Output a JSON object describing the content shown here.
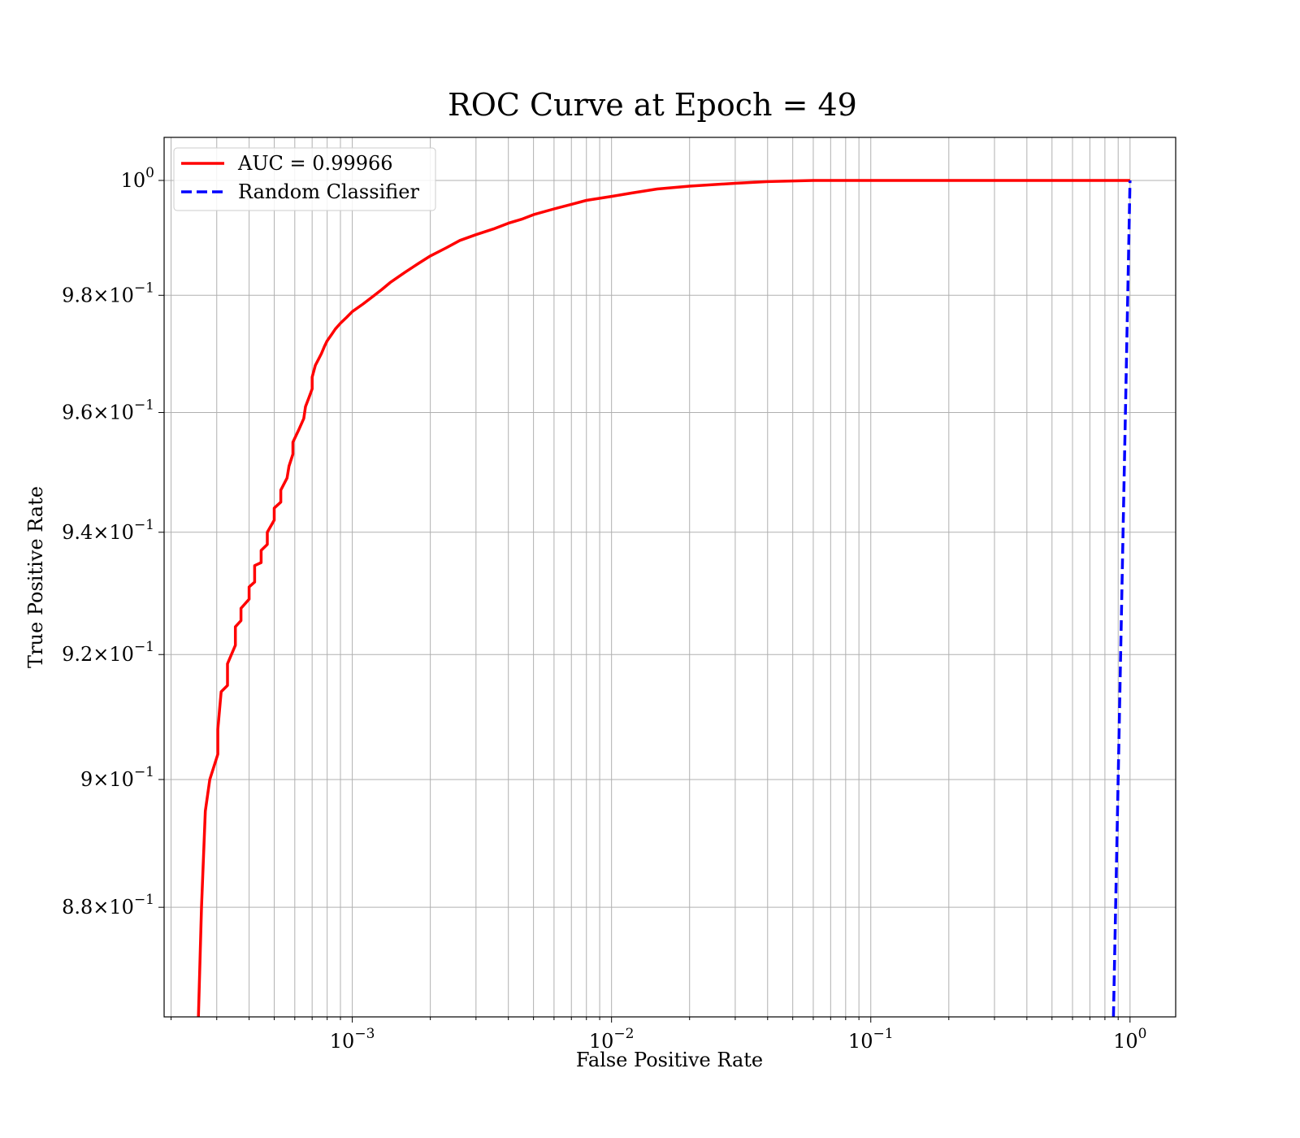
{
  "chart_data": {
    "type": "line",
    "title": "ROC Curve at Epoch = 49",
    "xlabel": "False Positive Rate",
    "ylabel": "True Positive Rate",
    "xscale": "log",
    "yscale": "log",
    "xlim": [
      0.000188,
      1.5
    ],
    "ylim": [
      0.8632,
      1.0076
    ],
    "x_ticks": [
      {
        "value": 0.001,
        "base": "10",
        "exp": "−3"
      },
      {
        "value": 0.01,
        "base": "10",
        "exp": "−2"
      },
      {
        "value": 0.1,
        "base": "10",
        "exp": "−1"
      },
      {
        "value": 1,
        "base": "10",
        "exp": "0"
      }
    ],
    "y_ticks": [
      {
        "value": 0.88,
        "mant": "8.8",
        "exp": "−1"
      },
      {
        "value": 0.9,
        "mant": "9",
        "exp": "−1"
      },
      {
        "value": 0.92,
        "mant": "9.2",
        "exp": "−1"
      },
      {
        "value": 0.94,
        "mant": "9.4",
        "exp": "−1"
      },
      {
        "value": 0.96,
        "mant": "9.6",
        "exp": "−1"
      },
      {
        "value": 0.98,
        "mant": "9.8",
        "exp": "−1"
      },
      {
        "value": 1.0,
        "mant": "10",
        "exp": "0"
      }
    ],
    "grid": true,
    "legend_position": "upper left",
    "series": [
      {
        "name": "AUC = 0.99966",
        "color": "#ff0000",
        "style": "solid",
        "x": [
          0.000255,
          0.000257,
          0.000262,
          0.000271,
          0.000282,
          0.000303,
          0.000303,
          0.000312,
          0.00033,
          0.00033,
          0.000354,
          0.000354,
          0.000372,
          0.000372,
          0.0004,
          0.0004,
          0.00042,
          0.00042,
          0.000445,
          0.000445,
          0.00047,
          0.00047,
          0.0005,
          0.0005,
          0.00053,
          0.00053,
          0.00056,
          0.00057,
          0.00059,
          0.00059,
          0.00062,
          0.00065,
          0.00066,
          0.00068,
          0.0007,
          0.0007,
          0.00072,
          0.00074,
          0.00076,
          0.00078,
          0.0008,
          0.00083,
          0.00086,
          0.0009,
          0.00095,
          0.001,
          0.0011,
          0.0012,
          0.0013,
          0.0014,
          0.0016,
          0.0018,
          0.002,
          0.0023,
          0.0026,
          0.003,
          0.0035,
          0.004,
          0.0045,
          0.005,
          0.006,
          0.007,
          0.008,
          0.01,
          0.012,
          0.015,
          0.02,
          0.03,
          0.04,
          0.06,
          0.08,
          0.1,
          0.2,
          0.5,
          1.0
        ],
        "y": [
          0.8632,
          0.868,
          0.88,
          0.895,
          0.9,
          0.904,
          0.908,
          0.914,
          0.915,
          0.9185,
          0.9215,
          0.9245,
          0.9255,
          0.9275,
          0.929,
          0.931,
          0.9318,
          0.9345,
          0.935,
          0.937,
          0.938,
          0.94,
          0.942,
          0.944,
          0.945,
          0.947,
          0.949,
          0.951,
          0.953,
          0.955,
          0.957,
          0.959,
          0.961,
          0.9625,
          0.964,
          0.966,
          0.968,
          0.969,
          0.97,
          0.9712,
          0.9722,
          0.9732,
          0.9742,
          0.9752,
          0.9762,
          0.9772,
          0.9785,
          0.9798,
          0.981,
          0.9822,
          0.984,
          0.9855,
          0.9868,
          0.9882,
          0.9895,
          0.9905,
          0.9915,
          0.9925,
          0.9932,
          0.994,
          0.995,
          0.9958,
          0.9965,
          0.9972,
          0.9978,
          0.9985,
          0.999,
          0.9995,
          0.9998,
          1.0,
          1.0,
          1.0,
          1.0,
          1.0,
          1.0
        ]
      },
      {
        "name": "Random Classifier",
        "color": "#0000ff",
        "style": "dashed",
        "x": [
          0.8632,
          1.0
        ],
        "y": [
          0.8632,
          1.0
        ]
      }
    ]
  }
}
